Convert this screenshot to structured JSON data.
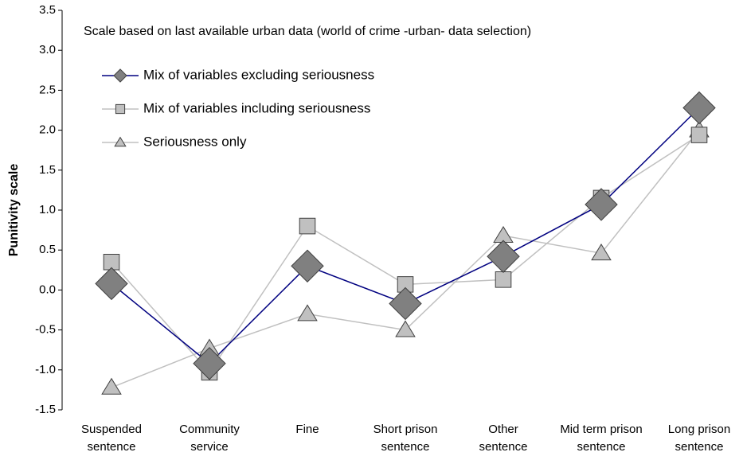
{
  "chart_data": {
    "type": "line",
    "annotation": "Scale based on last available urban data (world of crime -urban- data selection)",
    "y_label": "Punitivity scale",
    "categories": [
      "Suspended sentence",
      "Community service",
      "Fine",
      "Short prison sentence",
      "Other sentence",
      "Mid term prison sentence",
      "Long prison sentence"
    ],
    "series": [
      {
        "name": "Mix of variables excluding seriousness",
        "color": "#000080",
        "marker": "diamond",
        "marker_color": "#808080",
        "values": [
          0.08,
          -0.92,
          0.3,
          -0.17,
          0.42,
          1.07,
          2.28
        ]
      },
      {
        "name": "Mix of variables including seriousness",
        "color": "#c0c0c0",
        "marker": "square",
        "marker_color": "#c0c0c0",
        "values": [
          0.35,
          -1.03,
          0.8,
          0.07,
          0.13,
          1.15,
          1.94
        ]
      },
      {
        "name": "Seriousness only",
        "color": "#c0c0c0",
        "marker": "triangle",
        "marker_color": "#c0c0c0",
        "values": [
          -1.22,
          -0.73,
          -0.3,
          -0.5,
          0.68,
          0.46,
          2.0
        ]
      }
    ],
    "ylim": [
      -1.5,
      3.5
    ],
    "yticks": [
      -1.5,
      {
        "value": -1.0,
        "label": "-1.0"
      },
      -0.5,
      {
        "value": 0.0,
        "label": "0.0"
      },
      0.5,
      {
        "value": 1.0,
        "label": "1.0"
      },
      1.5,
      {
        "value": 2.0,
        "label": "2.0"
      },
      2.5,
      {
        "value": 3.0,
        "label": "3.0"
      },
      3.5
    ],
    "grid": false,
    "legend": "top-left"
  }
}
